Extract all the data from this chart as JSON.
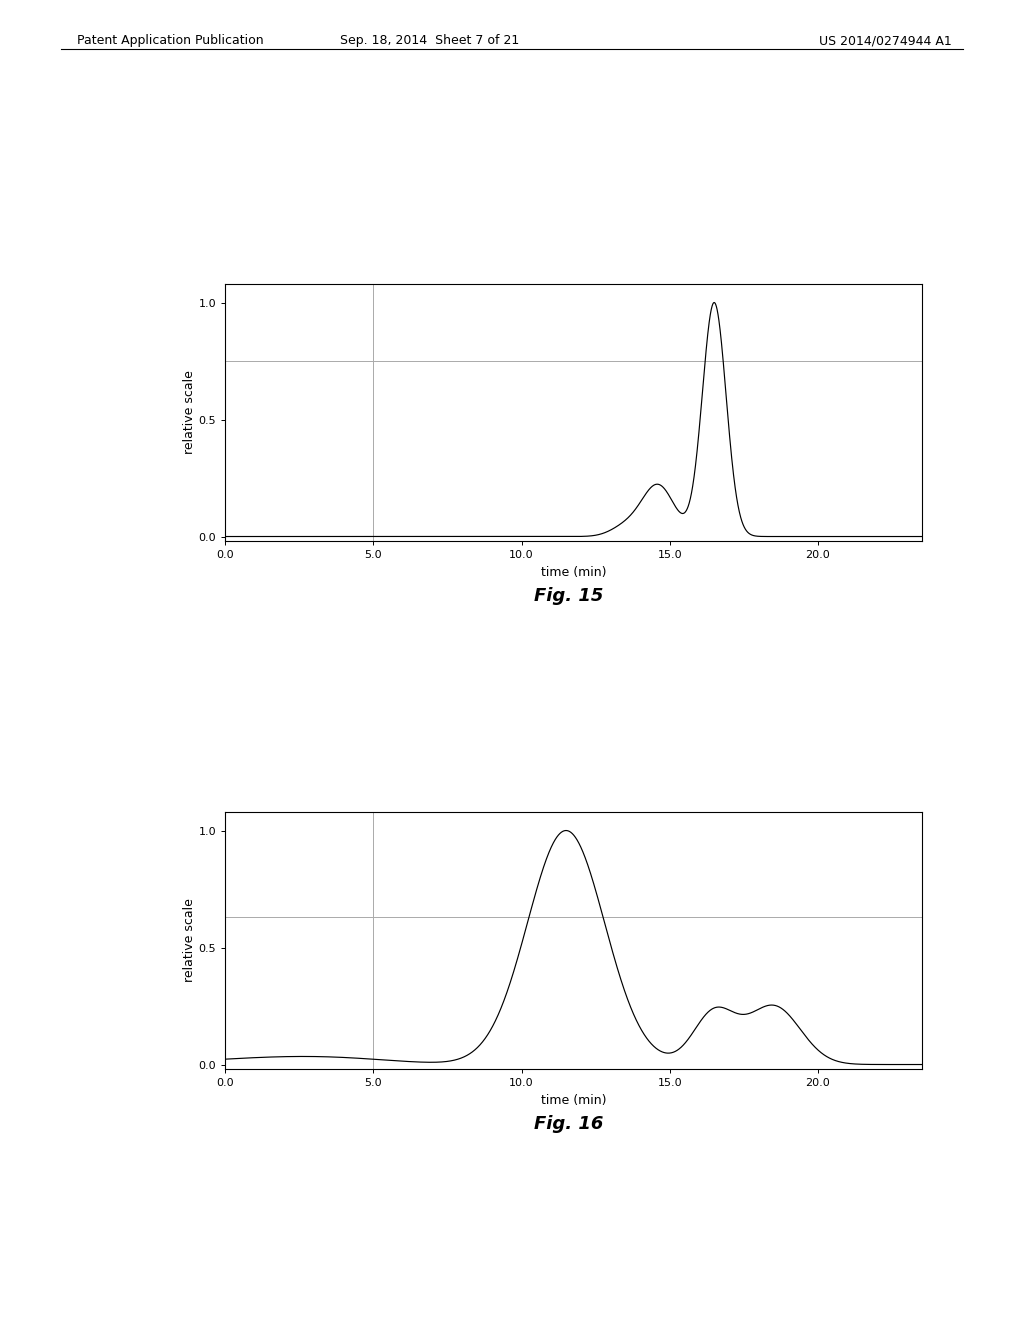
{
  "header_left": "Patent Application Publication",
  "header_mid": "Sep. 18, 2014  Sheet 7 of 21",
  "header_right": "US 2014/0274944 A1",
  "fig15_caption": "Fig. 15",
  "fig16_caption": "Fig. 16",
  "xlabel": "time (min)",
  "ylabel": "relative scale",
  "xlim": [
    0.0,
    23.5
  ],
  "ylim": [
    -0.02,
    1.08
  ],
  "xticks": [
    0.0,
    5.0,
    10.0,
    15.0,
    20.0
  ],
  "yticks": [
    0.0,
    0.5,
    1.0
  ],
  "fig15_hline": 0.75,
  "fig16_hline": 0.63,
  "vline_x": 5.0,
  "line_color": "#000000",
  "grid_color": "#aaaaaa",
  "bg_color": "#ffffff",
  "header_color": "#000000"
}
